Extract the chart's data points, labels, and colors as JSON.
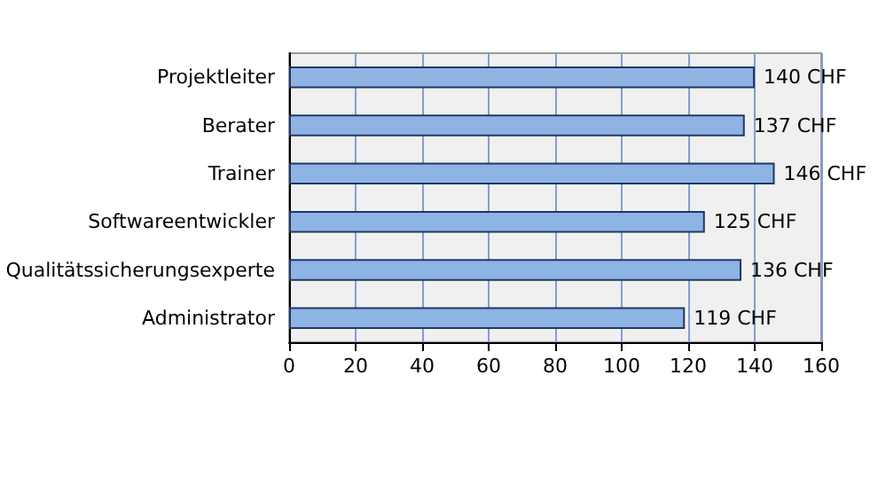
{
  "chart_data": {
    "type": "bar",
    "orientation": "horizontal",
    "categories": [
      "Projektleiter",
      "Berater",
      "Trainer",
      "Softwareentwickler",
      "Qualitätssicherungsexperte",
      "Administrator"
    ],
    "values": [
      140,
      137,
      146,
      125,
      136,
      119
    ],
    "value_labels": [
      "140 CHF",
      "137 CHF",
      "146 CHF",
      "125 CHF",
      "136 CHF",
      "119 CHF"
    ],
    "color": "#8eb4e3",
    "xlim": [
      0,
      160
    ],
    "xticks": [
      0,
      20,
      40,
      60,
      80,
      100,
      120,
      140,
      160
    ],
    "grid": "x"
  }
}
